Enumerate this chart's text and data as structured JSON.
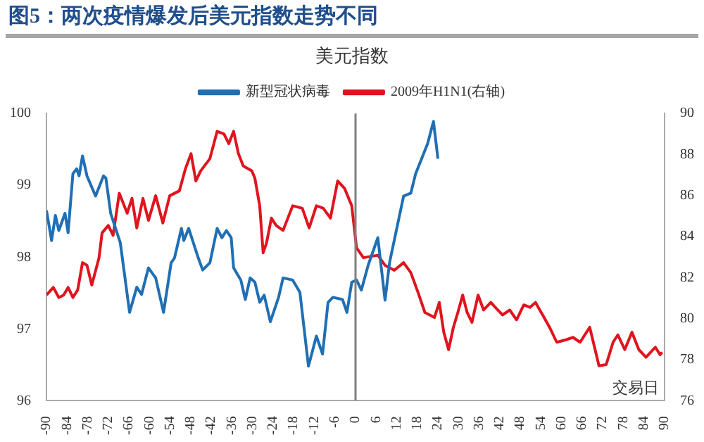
{
  "chart_data": {
    "type": "line",
    "title": "图5：两次疫情爆发后美元指数走势不同",
    "subtitle": "美元指数",
    "xlabel": "交易日",
    "xlim": [
      -90,
      90
    ],
    "xticks": [
      -90,
      -84,
      -78,
      -72,
      -66,
      -60,
      -54,
      -48,
      -42,
      -36,
      -30,
      -24,
      -18,
      -12,
      -6,
      0,
      6,
      12,
      18,
      24,
      30,
      36,
      42,
      48,
      54,
      60,
      66,
      72,
      78,
      84,
      90
    ],
    "ylim": [
      96,
      100
    ],
    "yticks": [
      96,
      97,
      98,
      99,
      100
    ],
    "y2lim": [
      76,
      90
    ],
    "y2ticks": [
      76,
      78,
      80,
      82,
      84,
      86,
      88,
      90
    ],
    "grid": false,
    "legend": "top",
    "marker": "none",
    "ref_lines": [
      {
        "axis": "x",
        "value": 0,
        "color": "#808080"
      }
    ],
    "series": [
      {
        "name": "新型冠状病毒",
        "color": "#1f6fb4",
        "x": [
          -90,
          -88.5,
          -87.4,
          -86.4,
          -84.6,
          -83.7,
          -82.3,
          -81.2,
          -80.5,
          -79.5,
          -78.2,
          -75.7,
          -73.4,
          -72.7,
          -71.3,
          -68.5,
          -65.8,
          -63.7,
          -62.3,
          -60.3,
          -58.2,
          -55.9,
          -53.7,
          -52.7,
          -50.7,
          -50,
          -48.6,
          -45.8,
          -44.5,
          -42.4,
          -40.3,
          -38.9,
          -37.6,
          -36.2,
          -35.5,
          -33.4,
          -32.1,
          -30.7,
          -29.3,
          -27.9,
          -26.6,
          -24.8,
          -22.4,
          -21.1,
          -18.3,
          -16.2,
          -13.7,
          -11.4,
          -9.6,
          -8,
          -6.6,
          -3.8,
          -2.5,
          -1.1,
          0.3,
          1.7,
          3.7,
          6.5,
          8.6,
          9.9,
          14,
          16.1,
          17.5,
          21,
          22.7,
          24
        ],
        "values": [
          98.65,
          98.23,
          98.58,
          98.37,
          98.61,
          98.34,
          99.16,
          99.23,
          99.13,
          99.41,
          99.13,
          98.85,
          99.13,
          99.1,
          98.61,
          98.2,
          97.23,
          97.58,
          97.48,
          97.85,
          97.71,
          97.23,
          97.92,
          97.99,
          98.4,
          98.23,
          98.4,
          97.99,
          97.82,
          97.92,
          98.4,
          98.27,
          98.37,
          98.27,
          97.85,
          97.68,
          97.41,
          97.71,
          97.65,
          97.37,
          97.47,
          97.1,
          97.44,
          97.71,
          97.68,
          97.51,
          96.48,
          96.9,
          96.65,
          97.37,
          97.44,
          97.41,
          97.23,
          97.65,
          97.68,
          97.54,
          97.89,
          98.27,
          97.4,
          97.92,
          98.85,
          98.89,
          99.16,
          99.58,
          99.89,
          99.37
        ]
      },
      {
        "name": "2009年H1N1(右轴)",
        "color": "#e0141e",
        "axis": "y2",
        "x": [
          -90,
          -88,
          -86.4,
          -85,
          -83.7,
          -82.3,
          -80.9,
          -79.5,
          -78.2,
          -76.8,
          -74.7,
          -73.8,
          -72,
          -70.6,
          -68.8,
          -66.5,
          -65.1,
          -63.7,
          -61.9,
          -60.3,
          -58.2,
          -56.1,
          -54.1,
          -51.3,
          -49.5,
          -47.9,
          -46.5,
          -45.1,
          -42.4,
          -40.3,
          -38.3,
          -36.9,
          -35.5,
          -34.1,
          -32.7,
          -30.2,
          -29.3,
          -27.9,
          -26.9,
          -25.9,
          -24.5,
          -23.1,
          -21.1,
          -18.3,
          -15.5,
          -13.5,
          -11.4,
          -9.4,
          -7.3,
          -5.2,
          -3.2,
          -1.1,
          0.3,
          2.3,
          6.5,
          8.6,
          11.3,
          14,
          16.1,
          18.2,
          20.2,
          23,
          24.4,
          25.7,
          27.1,
          28.5,
          29.8,
          31.2,
          32.5,
          33.9,
          35.7,
          37.3,
          39.4,
          40.7,
          42.8,
          44.9,
          46.9,
          49,
          50.8,
          52.4,
          54.5,
          56.5,
          58.6,
          61.3,
          63.3,
          65.4,
          68.2,
          69.6,
          70.9,
          73,
          75,
          76.4,
          78.4,
          80.5,
          82.5,
          84.6,
          87.3,
          88.7,
          89.3
        ],
        "values": [
          81.15,
          81.52,
          81.03,
          81.15,
          81.52,
          81.03,
          81.4,
          82.73,
          82.6,
          81.64,
          82.97,
          84.18,
          84.54,
          84.06,
          86.11,
          85.14,
          85.86,
          84.42,
          85.86,
          84.79,
          85.99,
          84.66,
          85.99,
          86.23,
          87.32,
          88.04,
          86.71,
          87.2,
          87.8,
          89.13,
          89,
          88.53,
          89.13,
          88.04,
          87.44,
          87.2,
          86.84,
          85.5,
          83.21,
          83.7,
          84.9,
          84.54,
          84.3,
          85.5,
          85.38,
          84.42,
          85.5,
          85.38,
          84.9,
          86.71,
          86.35,
          85.5,
          83.45,
          82.97,
          83.09,
          82.6,
          82.36,
          82.73,
          82.24,
          81.28,
          80.3,
          80.06,
          80.79,
          79.34,
          78.49,
          79.58,
          80.3,
          81.15,
          80.3,
          79.82,
          81.15,
          80.42,
          80.79,
          80.55,
          80.18,
          80.42,
          79.94,
          80.67,
          80.55,
          80.79,
          80.18,
          79.58,
          78.85,
          78.97,
          79.09,
          78.85,
          79.58,
          78.61,
          77.7,
          77.76,
          78.85,
          79.21,
          78.49,
          79.34,
          78.49,
          78.12,
          78.61,
          78.24,
          78.36
        ]
      }
    ]
  }
}
